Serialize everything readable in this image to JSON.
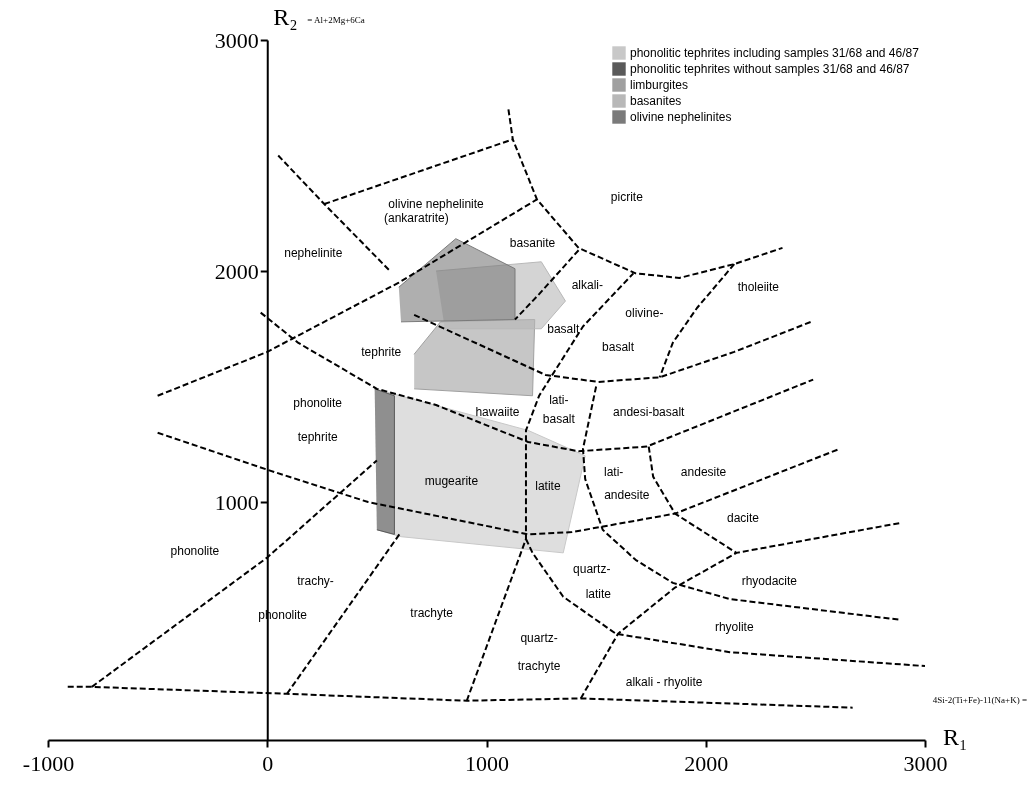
{
  "chart_data": {
    "type": "line",
    "xlabel": "R₁",
    "ylabel": "R₂",
    "xlim": [
      -1000,
      3000
    ],
    "ylim": [
      -30,
      3000
    ],
    "xticks": [
      -1000,
      0,
      1000,
      2000,
      3000
    ],
    "yticks": [
      1000,
      2000,
      3000
    ],
    "grid": false,
    "legend": "top right",
    "line_style": "dashed",
    "series": [
      {
        "type": "area",
        "name": "phonolitic tephrites including samples 31/68 and 46/87",
        "color": "#c8c8c8",
        "x": [
          490,
          1190,
          1450,
          1350,
          610,
          500
        ],
        "values": [
          1490,
          1310,
          1200,
          780,
          850,
          880
        ]
      },
      {
        "type": "area",
        "name": "phonolitic tephrites without samples 31/68 and 46/87",
        "color": "#5a5a5a",
        "x": [
          490,
          580,
          580,
          500
        ],
        "values": [
          1490,
          1460,
          860,
          880
        ]
      },
      {
        "type": "area",
        "name": "limburgites",
        "color": "#a0a0a0",
        "x": [
          670,
          790,
          1220,
          1210,
          670
        ],
        "values": [
          1640,
          1780,
          1790,
          1460,
          1490
        ]
      },
      {
        "type": "area",
        "name": "basanites",
        "color": "#b8b8b8",
        "x": [
          770,
          1250,
          1360,
          1250,
          810
        ],
        "values": [
          2000,
          2040,
          1870,
          1750,
          1750
        ]
      },
      {
        "type": "area",
        "name": "olivine nephelinites",
        "color": "#7a7a7a",
        "x": [
          600,
          860,
          1130,
          1130,
          610
        ],
        "values": [
          1930,
          2140,
          2010,
          1790,
          1780
        ]
      },
      {
        "color": "#000000",
        "x": [
          -910,
          -800,
          90,
          910,
          1430,
          2670
        ],
        "values": [
          200,
          200,
          170,
          140,
          150,
          110
        ]
      },
      {
        "color": "#000000",
        "x": [
          -800,
          0,
          500
        ],
        "values": [
          200,
          760,
          1180
        ]
      },
      {
        "color": "#000000",
        "x": [
          90,
          610
        ],
        "values": [
          170,
          870
        ]
      },
      {
        "color": "#000000",
        "x": [
          910,
          1180,
          1180,
          1240,
          1440,
          1670
        ],
        "values": [
          140,
          840,
          1310,
          1460,
          1760,
          1990
        ]
      },
      {
        "color": "#000000",
        "x": [
          1420,
          1240,
          1130
        ],
        "values": [
          2090,
          1900,
          1790
        ]
      },
      {
        "color": "#000000",
        "x": [
          1100,
          1120,
          1230,
          1420,
          1680,
          1880,
          2130,
          2350
        ],
        "values": [
          2700,
          2570,
          2310,
          2100,
          1990,
          1970,
          2030,
          2100
        ]
      },
      {
        "color": "#000000",
        "x": [
          260,
          1120
        ],
        "values": [
          2290,
          2570
        ]
      },
      {
        "color": "#000000",
        "x": [
          50,
          260,
          560
        ],
        "values": [
          2500,
          2290,
          2000
        ]
      },
      {
        "color": "#000000",
        "x": [
          -500,
          0,
          600,
          1230
        ],
        "values": [
          1460,
          1650,
          1950,
          2310
        ]
      },
      {
        "color": "#000000",
        "x": [
          -30,
          140,
          500,
          770,
          1190,
          1420,
          1730,
          2490
        ],
        "values": [
          1820,
          1690,
          1490,
          1420,
          1260,
          1220,
          1240,
          1530
        ]
      },
      {
        "color": "#000000",
        "x": [
          670,
          1040,
          1270,
          1510,
          1790,
          2130,
          2480
        ],
        "values": [
          1810,
          1650,
          1550,
          1520,
          1540,
          1650,
          1780
        ]
      },
      {
        "color": "#000000",
        "x": [
          2130,
          1960,
          1850,
          1790
        ],
        "values": [
          2030,
          1840,
          1690,
          1540
        ]
      },
      {
        "color": "#000000",
        "x": [
          1500,
          1440,
          1450,
          1530,
          1680,
          1850,
          2110,
          2890
        ],
        "values": [
          1500,
          1230,
          1100,
          880,
          750,
          650,
          580,
          490
        ]
      },
      {
        "color": "#000000",
        "x": [
          -500,
          0,
          460,
          1190,
          1390,
          1860,
          2610
        ],
        "values": [
          1300,
          1140,
          1000,
          860,
          870,
          950,
          1230
        ]
      },
      {
        "color": "#000000",
        "x": [
          1740,
          1760,
          1860,
          2140
        ],
        "values": [
          1240,
          1110,
          950,
          780
        ]
      },
      {
        "color": "#000000",
        "x": [
          1430,
          1600,
          1860,
          2140,
          2890
        ],
        "values": [
          150,
          430,
          630,
          780,
          910
        ]
      },
      {
        "color": "#000000",
        "x": [
          1180,
          1210,
          1350,
          1590,
          2110,
          3000
        ],
        "values": [
          840,
          780,
          590,
          430,
          350,
          290
        ]
      }
    ],
    "annotations": [
      "= Al+2Mg+6Ca",
      "4Si-2(Ti+Fe)-11(Na+K) =",
      "olivine nephelinite",
      "(ankaratrite)",
      "picrite",
      "nephelinite",
      "basanite",
      "alkali-",
      "basalt",
      "olivine-",
      "basalt",
      "tholeiite",
      "tephrite",
      "phonolite",
      "tephrite",
      "hawaiite",
      "lati-",
      "basalt",
      "andesi-basalt",
      "mugearite",
      "latite",
      "lati-",
      "andesite",
      "andesite",
      "dacite",
      "phonolite",
      "trachy-",
      "phonolite",
      "trachyte",
      "quartz-",
      "latite",
      "rhyodacite",
      "rhyolite",
      "quartz-",
      "trachyte",
      "alkali - rhyolite"
    ]
  }
}
